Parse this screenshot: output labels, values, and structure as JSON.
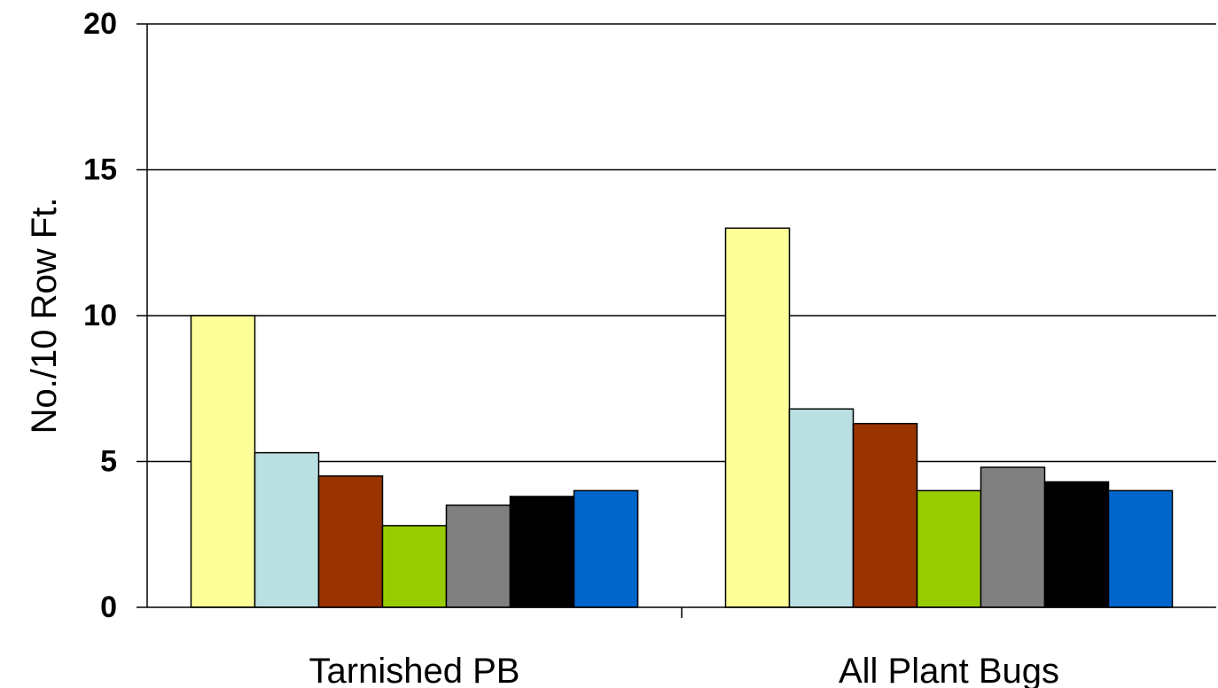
{
  "chart_data": {
    "type": "bar",
    "title": "",
    "xlabel": "",
    "ylabel": "No./10 Row Ft.",
    "ylim": [
      0,
      20
    ],
    "yticks": [
      "0",
      "5",
      "10",
      "15",
      "20"
    ],
    "grid": true,
    "legend": "none",
    "categories": [
      "Tarnished PB",
      "All Plant Bugs"
    ],
    "series": [
      {
        "color": "#ffff99",
        "values": [
          10,
          13
        ]
      },
      {
        "color": "#b9dfe3",
        "values": [
          5.3,
          6.8
        ]
      },
      {
        "color": "#993300",
        "values": [
          4.5,
          6.3
        ]
      },
      {
        "color": "#99cc00",
        "values": [
          2.8,
          4.0
        ]
      },
      {
        "color": "#808080",
        "values": [
          3.5,
          4.8
        ]
      },
      {
        "color": "#000000",
        "values": [
          3.8,
          4.3
        ]
      },
      {
        "color": "#0066cc",
        "values": [
          4.0,
          4.0
        ]
      }
    ]
  }
}
